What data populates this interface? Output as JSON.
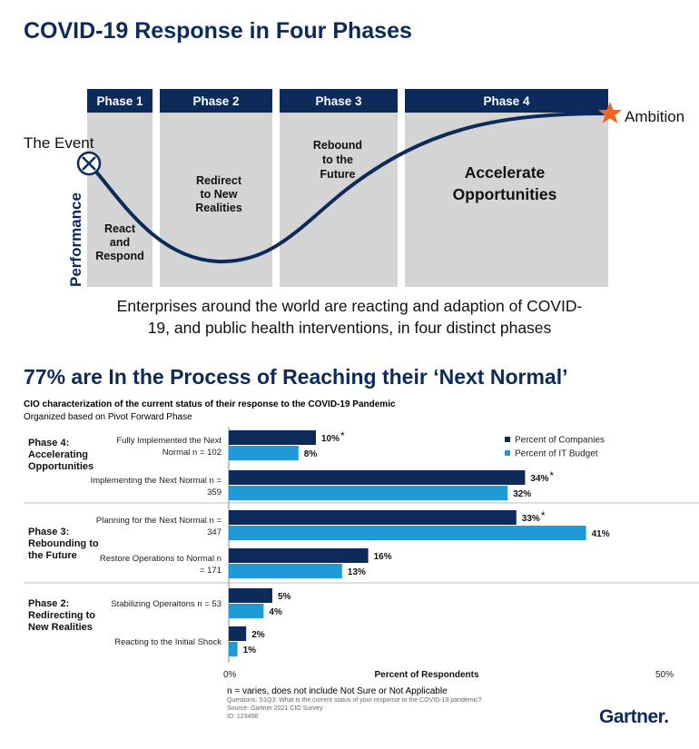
{
  "top": {
    "title": "COVID-19 Response in Four Phases",
    "phases": [
      {
        "header": "Phase 1",
        "text": [
          "React",
          "and",
          "Respond"
        ]
      },
      {
        "header": "Phase 2",
        "text": [
          "Redirect",
          "to New",
          "Realities"
        ]
      },
      {
        "header": "Phase 3",
        "text": [
          "Rebound",
          "to the",
          "Future"
        ]
      },
      {
        "header": "Phase 4",
        "text": [
          "Accelerate",
          "Opportunities"
        ]
      }
    ],
    "event_label": "The Event",
    "ambition_label": "Ambition",
    "y_axis_label": "Performance",
    "caption_line1": "Enterprises around the world are reacting and adaption of COVID-",
    "caption_line2": "19, and public health interventions, in four distinct phases",
    "colors": {
      "header": "#0c2a5a",
      "box": "#d4d4d4",
      "star": "#f26522"
    }
  },
  "bottom": {
    "title": "77% are In the Process of Reaching their ‘Next Normal’",
    "subhead": "CIO characterization of the current status of their response to the COVID-19 Pandemic",
    "subhead2": "Organized based on Pivot Forward Phase",
    "footnote": "n = varies, does not include Not Sure or Not Applicable",
    "notes": [
      "Questions: S1Q3: What is the current status of your response to the COVID-19 pandemic?",
      "Source: Gartner 2021 CIO Survey",
      "ID: 123456"
    ],
    "logo": "Gartner",
    "logo_dot": "."
  },
  "chart_data": {
    "type": "bar",
    "orientation": "horizontal",
    "xlabel": "Percent of Respondents",
    "xlim": [
      0,
      50
    ],
    "x_tick_labels": [
      "0%",
      "50%"
    ],
    "legend_placement": "top-right",
    "groups": [
      {
        "label": [
          "Phase 4:",
          "Accelerating",
          "Opportunities"
        ],
        "categories": [
          0,
          1
        ]
      },
      {
        "label": [
          "Phase 3:",
          "Rebounding to",
          "the Future"
        ],
        "categories": [
          2,
          3
        ]
      },
      {
        "label": [
          "Phase 2:",
          "Redirecting to",
          "New Realities"
        ],
        "categories": [
          4,
          5
        ]
      }
    ],
    "categories": [
      [
        "Fully Implemented the Next",
        "Normal n = 102"
      ],
      [
        "Implementing the Next Normal n =",
        "359"
      ],
      [
        "Planning for the Next Normal n =",
        "347"
      ],
      [
        "Restore Operations to  Normal n",
        "= 171"
      ],
      [
        "Stabilizing Operaitons n = 53"
      ],
      [
        "Reacting to the Initial Shock"
      ]
    ],
    "series": [
      {
        "name": "Percent of Companies",
        "color": "#0c2a5a",
        "values": [
          10,
          34,
          33,
          16,
          5,
          2
        ],
        "labels": [
          "10%",
          "34%",
          "33%",
          "16%",
          "5%",
          "2%"
        ],
        "asterisk": [
          true,
          true,
          true,
          false,
          false,
          false
        ]
      },
      {
        "name": "Percent of IT Budget",
        "color": "#1f9ad6",
        "values": [
          8,
          32,
          41,
          13,
          4,
          1
        ],
        "labels": [
          "8%",
          "32%",
          "41%",
          "13%",
          "4%",
          "1%"
        ],
        "asterisk": [
          false,
          false,
          false,
          false,
          false,
          false
        ]
      }
    ]
  }
}
